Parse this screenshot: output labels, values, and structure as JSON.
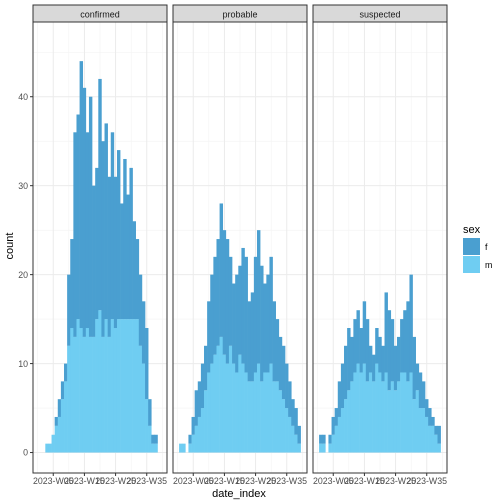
{
  "chart_data": {
    "type": "bar",
    "stacked": true,
    "facets": [
      "confirmed",
      "probable",
      "suspected"
    ],
    "xlabel": "date_index",
    "ylabel": "count",
    "x_ticks": [
      "2023-W05",
      "2023-W15",
      "2023-W25",
      "2023-W35"
    ],
    "x_range": [
      1,
      39
    ],
    "ylim": [
      0,
      46
    ],
    "y_ticks": [
      0,
      10,
      20,
      30,
      40
    ],
    "legend": {
      "title": "sex",
      "position": "right",
      "entries": [
        {
          "key": "f",
          "label": "f",
          "color": "#4a9fd0"
        },
        {
          "key": "m",
          "label": "m",
          "color": "#6fcdf2"
        }
      ]
    },
    "grid": true,
    "x": [
      1,
      2,
      3,
      4,
      5,
      6,
      7,
      8,
      9,
      10,
      11,
      12,
      13,
      14,
      15,
      16,
      17,
      18,
      19,
      20,
      21,
      22,
      23,
      24,
      25,
      26,
      27,
      28,
      29,
      30,
      31,
      32,
      33,
      34,
      35,
      36,
      37,
      38,
      39
    ],
    "panels": [
      {
        "name": "confirmed",
        "m": [
          0,
          0,
          1,
          1,
          2,
          3,
          4,
          6,
          8,
          12,
          14,
          13,
          15,
          14,
          13,
          14,
          13,
          13,
          15,
          16,
          13,
          15,
          13,
          15,
          14,
          15,
          15,
          15,
          15,
          15,
          15,
          15,
          12,
          10,
          6,
          3,
          1,
          1,
          0
        ],
        "total": [
          0,
          0,
          1,
          1,
          2,
          4,
          6,
          8,
          10,
          20,
          24,
          36,
          38,
          44,
          41,
          36,
          40,
          30,
          32,
          42,
          35,
          37,
          31,
          36,
          31,
          34,
          28,
          33,
          29,
          32,
          26,
          24,
          20,
          17,
          14,
          6,
          2,
          2,
          0
        ]
      },
      {
        "name": "probable",
        "m": [
          1,
          1,
          0,
          1,
          2,
          3,
          4,
          5,
          7,
          9,
          10,
          11,
          12,
          13,
          11,
          10,
          12,
          10,
          9,
          11,
          10,
          9,
          8,
          8,
          9,
          10,
          8,
          9,
          9,
          10,
          8,
          8,
          7,
          6,
          5,
          4,
          3,
          2,
          1
        ],
        "total": [
          1,
          1,
          0,
          2,
          4,
          7,
          8,
          10,
          12,
          17,
          20,
          22,
          24,
          28,
          25,
          24,
          22,
          19,
          20,
          21,
          23,
          22,
          17,
          18,
          22,
          25,
          21,
          19,
          20,
          22,
          17,
          15,
          13,
          12,
          10,
          8,
          6,
          5,
          3
        ]
      },
      {
        "name": "suspected",
        "m": [
          1,
          1,
          0,
          1,
          2,
          3,
          4,
          5,
          6,
          7,
          8,
          9,
          10,
          9,
          10,
          8,
          9,
          8,
          10,
          9,
          8,
          9,
          7,
          8,
          7,
          8,
          9,
          9,
          8,
          9,
          6,
          7,
          5,
          5,
          4,
          3,
          3,
          2,
          1
        ],
        "total": [
          2,
          2,
          0,
          2,
          4,
          5,
          8,
          10,
          12,
          14,
          13,
          15,
          16,
          14,
          17,
          15,
          12,
          11,
          14,
          13,
          12,
          18,
          16,
          15,
          12,
          13,
          15,
          16,
          17,
          20,
          13,
          10,
          9,
          8,
          6,
          5,
          4,
          3,
          3
        ]
      }
    ]
  }
}
